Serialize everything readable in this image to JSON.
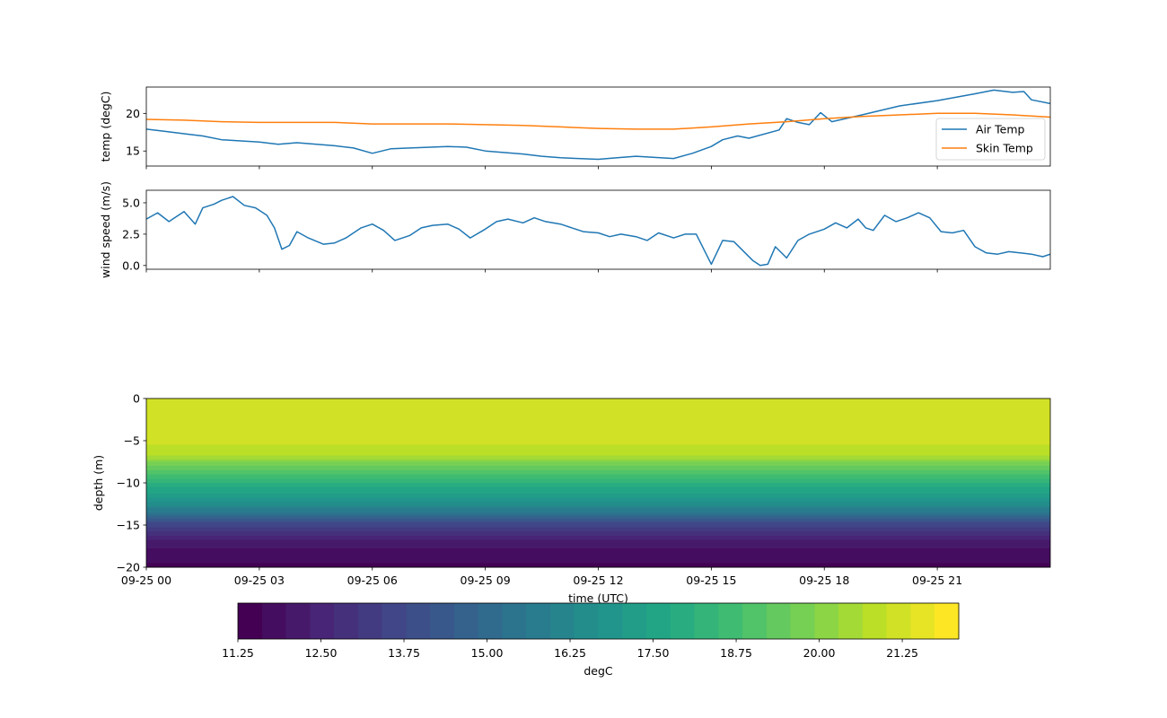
{
  "chart_data": [
    {
      "type": "line",
      "ylabel": "temp (degC)",
      "xlim_hours": [
        0,
        24
      ],
      "ylim": [
        13.0,
        23.5
      ],
      "yticks": [
        15,
        20
      ],
      "ytick_labels": [
        "15",
        "20"
      ],
      "legend": "bottom-right",
      "series": [
        {
          "name": "Air Temp",
          "color": "#1f77b4",
          "points": [
            [
              0,
              17.9
            ],
            [
              0.5,
              17.6
            ],
            [
              1,
              17.3
            ],
            [
              1.5,
              17.0
            ],
            [
              2,
              16.5
            ],
            [
              3,
              16.2
            ],
            [
              3.5,
              15.9
            ],
            [
              4,
              16.1
            ],
            [
              5,
              15.7
            ],
            [
              5.5,
              15.4
            ],
            [
              6,
              14.7
            ],
            [
              6.5,
              15.3
            ],
            [
              7,
              15.4
            ],
            [
              8,
              15.6
            ],
            [
              8.5,
              15.5
            ],
            [
              9,
              15.0
            ],
            [
              10,
              14.6
            ],
            [
              10.5,
              14.3
            ],
            [
              11,
              14.1
            ],
            [
              12,
              13.9
            ],
            [
              12.5,
              14.1
            ],
            [
              13,
              14.3
            ],
            [
              14,
              14.0
            ],
            [
              14.5,
              14.7
            ],
            [
              15,
              15.6
            ],
            [
              15.3,
              16.5
            ],
            [
              15.7,
              17.0
            ],
            [
              16,
              16.7
            ],
            [
              16.8,
              17.8
            ],
            [
              17,
              19.3
            ],
            [
              17.3,
              18.8
            ],
            [
              17.6,
              18.5
            ],
            [
              17.9,
              20.1
            ],
            [
              18.2,
              18.9
            ],
            [
              19,
              19.8
            ],
            [
              20,
              21.0
            ],
            [
              21,
              21.7
            ],
            [
              22,
              22.6
            ],
            [
              22.5,
              23.1
            ],
            [
              23,
              22.8
            ],
            [
              23.3,
              22.9
            ],
            [
              23.5,
              21.8
            ],
            [
              24,
              21.3
            ]
          ]
        },
        {
          "name": "Skin Temp",
          "color": "#ff7f0e",
          "points": [
            [
              0,
              19.2
            ],
            [
              1,
              19.1
            ],
            [
              2,
              18.9
            ],
            [
              3,
              18.8
            ],
            [
              4,
              18.8
            ],
            [
              5,
              18.8
            ],
            [
              6,
              18.6
            ],
            [
              7,
              18.6
            ],
            [
              8,
              18.6
            ],
            [
              9,
              18.5
            ],
            [
              10,
              18.4
            ],
            [
              11,
              18.2
            ],
            [
              12,
              18.0
            ],
            [
              13,
              17.9
            ],
            [
              14,
              17.9
            ],
            [
              15,
              18.2
            ],
            [
              16,
              18.6
            ],
            [
              17,
              18.9
            ],
            [
              18,
              19.3
            ],
            [
              19,
              19.6
            ],
            [
              20,
              19.8
            ],
            [
              21,
              20.0
            ],
            [
              22,
              20.0
            ],
            [
              23,
              19.8
            ],
            [
              24,
              19.5
            ]
          ]
        }
      ]
    },
    {
      "type": "line",
      "ylabel": "wind speed (m/s)",
      "xlim_hours": [
        0,
        24
      ],
      "ylim": [
        -0.3,
        6.0
      ],
      "yticks": [
        0.0,
        2.5,
        5.0
      ],
      "ytick_labels": [
        "0.0",
        "2.5",
        "5.0"
      ],
      "series": [
        {
          "color": "#1f77b4",
          "points": [
            [
              0,
              3.7
            ],
            [
              0.3,
              4.2
            ],
            [
              0.6,
              3.5
            ],
            [
              1,
              4.3
            ],
            [
              1.3,
              3.3
            ],
            [
              1.5,
              4.6
            ],
            [
              1.8,
              4.9
            ],
            [
              2,
              5.2
            ],
            [
              2.3,
              5.5
            ],
            [
              2.6,
              4.8
            ],
            [
              2.9,
              4.6
            ],
            [
              3.2,
              4.0
            ],
            [
              3.4,
              3.0
            ],
            [
              3.6,
              1.3
            ],
            [
              3.8,
              1.6
            ],
            [
              4.0,
              2.7
            ],
            [
              4.3,
              2.2
            ],
            [
              4.7,
              1.7
            ],
            [
              5,
              1.8
            ],
            [
              5.3,
              2.2
            ],
            [
              5.7,
              3.0
            ],
            [
              6,
              3.3
            ],
            [
              6.3,
              2.8
            ],
            [
              6.6,
              2.0
            ],
            [
              7,
              2.4
            ],
            [
              7.3,
              3.0
            ],
            [
              7.6,
              3.2
            ],
            [
              8,
              3.3
            ],
            [
              8.3,
              2.9
            ],
            [
              8.6,
              2.2
            ],
            [
              9,
              2.9
            ],
            [
              9.3,
              3.5
            ],
            [
              9.6,
              3.7
            ],
            [
              10,
              3.4
            ],
            [
              10.3,
              3.8
            ],
            [
              10.6,
              3.5
            ],
            [
              11,
              3.3
            ],
            [
              11.3,
              3.0
            ],
            [
              11.6,
              2.7
            ],
            [
              12,
              2.6
            ],
            [
              12.3,
              2.3
            ],
            [
              12.6,
              2.5
            ],
            [
              13,
              2.3
            ],
            [
              13.3,
              2.0
            ],
            [
              13.6,
              2.6
            ],
            [
              14,
              2.2
            ],
            [
              14.3,
              2.5
            ],
            [
              14.6,
              2.5
            ],
            [
              15,
              0.1
            ],
            [
              15.3,
              2.0
            ],
            [
              15.6,
              1.9
            ],
            [
              15.9,
              1.0
            ],
            [
              16.1,
              0.4
            ],
            [
              16.3,
              0.0
            ],
            [
              16.5,
              0.1
            ],
            [
              16.7,
              1.5
            ],
            [
              17,
              0.6
            ],
            [
              17.3,
              2.0
            ],
            [
              17.6,
              2.5
            ],
            [
              18,
              2.9
            ],
            [
              18.3,
              3.4
            ],
            [
              18.6,
              3.0
            ],
            [
              18.9,
              3.7
            ],
            [
              19.1,
              3.0
            ],
            [
              19.3,
              2.8
            ],
            [
              19.6,
              4.0
            ],
            [
              19.9,
              3.5
            ],
            [
              20.2,
              3.8
            ],
            [
              20.5,
              4.2
            ],
            [
              20.8,
              3.8
            ],
            [
              21.1,
              2.7
            ],
            [
              21.4,
              2.6
            ],
            [
              21.7,
              2.8
            ],
            [
              22,
              1.5
            ],
            [
              22.3,
              1.0
            ],
            [
              22.6,
              0.9
            ],
            [
              22.9,
              1.1
            ],
            [
              23.2,
              1.0
            ],
            [
              23.5,
              0.9
            ],
            [
              23.8,
              0.7
            ],
            [
              24,
              0.9
            ]
          ]
        }
      ]
    },
    {
      "type": "heatmap",
      "ylabel": "depth (m)",
      "xlabel": "time (UTC)",
      "ylim": [
        -20,
        0
      ],
      "yticks": [
        0,
        -5,
        -10,
        -15,
        -20
      ],
      "ytick_labels": [
        "0",
        "−5",
        "−10",
        "−15",
        "−20"
      ],
      "xlim_hours": [
        0,
        24
      ],
      "xticks_hours": [
        0,
        3,
        6,
        9,
        12,
        15,
        18,
        21
      ],
      "xtick_labels": [
        "09-25 00",
        "09-25 03",
        "09-25 06",
        "09-25 09",
        "09-25 12",
        "09-25 15",
        "09-25 18",
        "09-25 21"
      ],
      "colormap": "viridis",
      "depth_profile": [
        [
          0,
          21.3
        ],
        [
          -2,
          21.2
        ],
        [
          -5,
          21.1
        ],
        [
          -6.5,
          20.8
        ],
        [
          -7.5,
          20.0
        ],
        [
          -9,
          18.9
        ],
        [
          -10.5,
          17.8
        ],
        [
          -12,
          16.9
        ],
        [
          -13.5,
          15.6
        ],
        [
          -15,
          13.6
        ],
        [
          -16.5,
          12.4
        ],
        [
          -18,
          11.9
        ],
        [
          -20,
          11.5
        ]
      ],
      "colorbar": {
        "label": "degC",
        "vmin": 11.25,
        "vmax": 22.1,
        "levels": 30,
        "ticks": [
          11.25,
          12.5,
          13.75,
          15.0,
          16.25,
          17.5,
          18.75,
          20.0,
          21.25
        ],
        "tick_labels": [
          "11.25",
          "12.50",
          "13.75",
          "15.00",
          "16.25",
          "17.50",
          "18.75",
          "20.00",
          "21.25"
        ]
      }
    }
  ]
}
